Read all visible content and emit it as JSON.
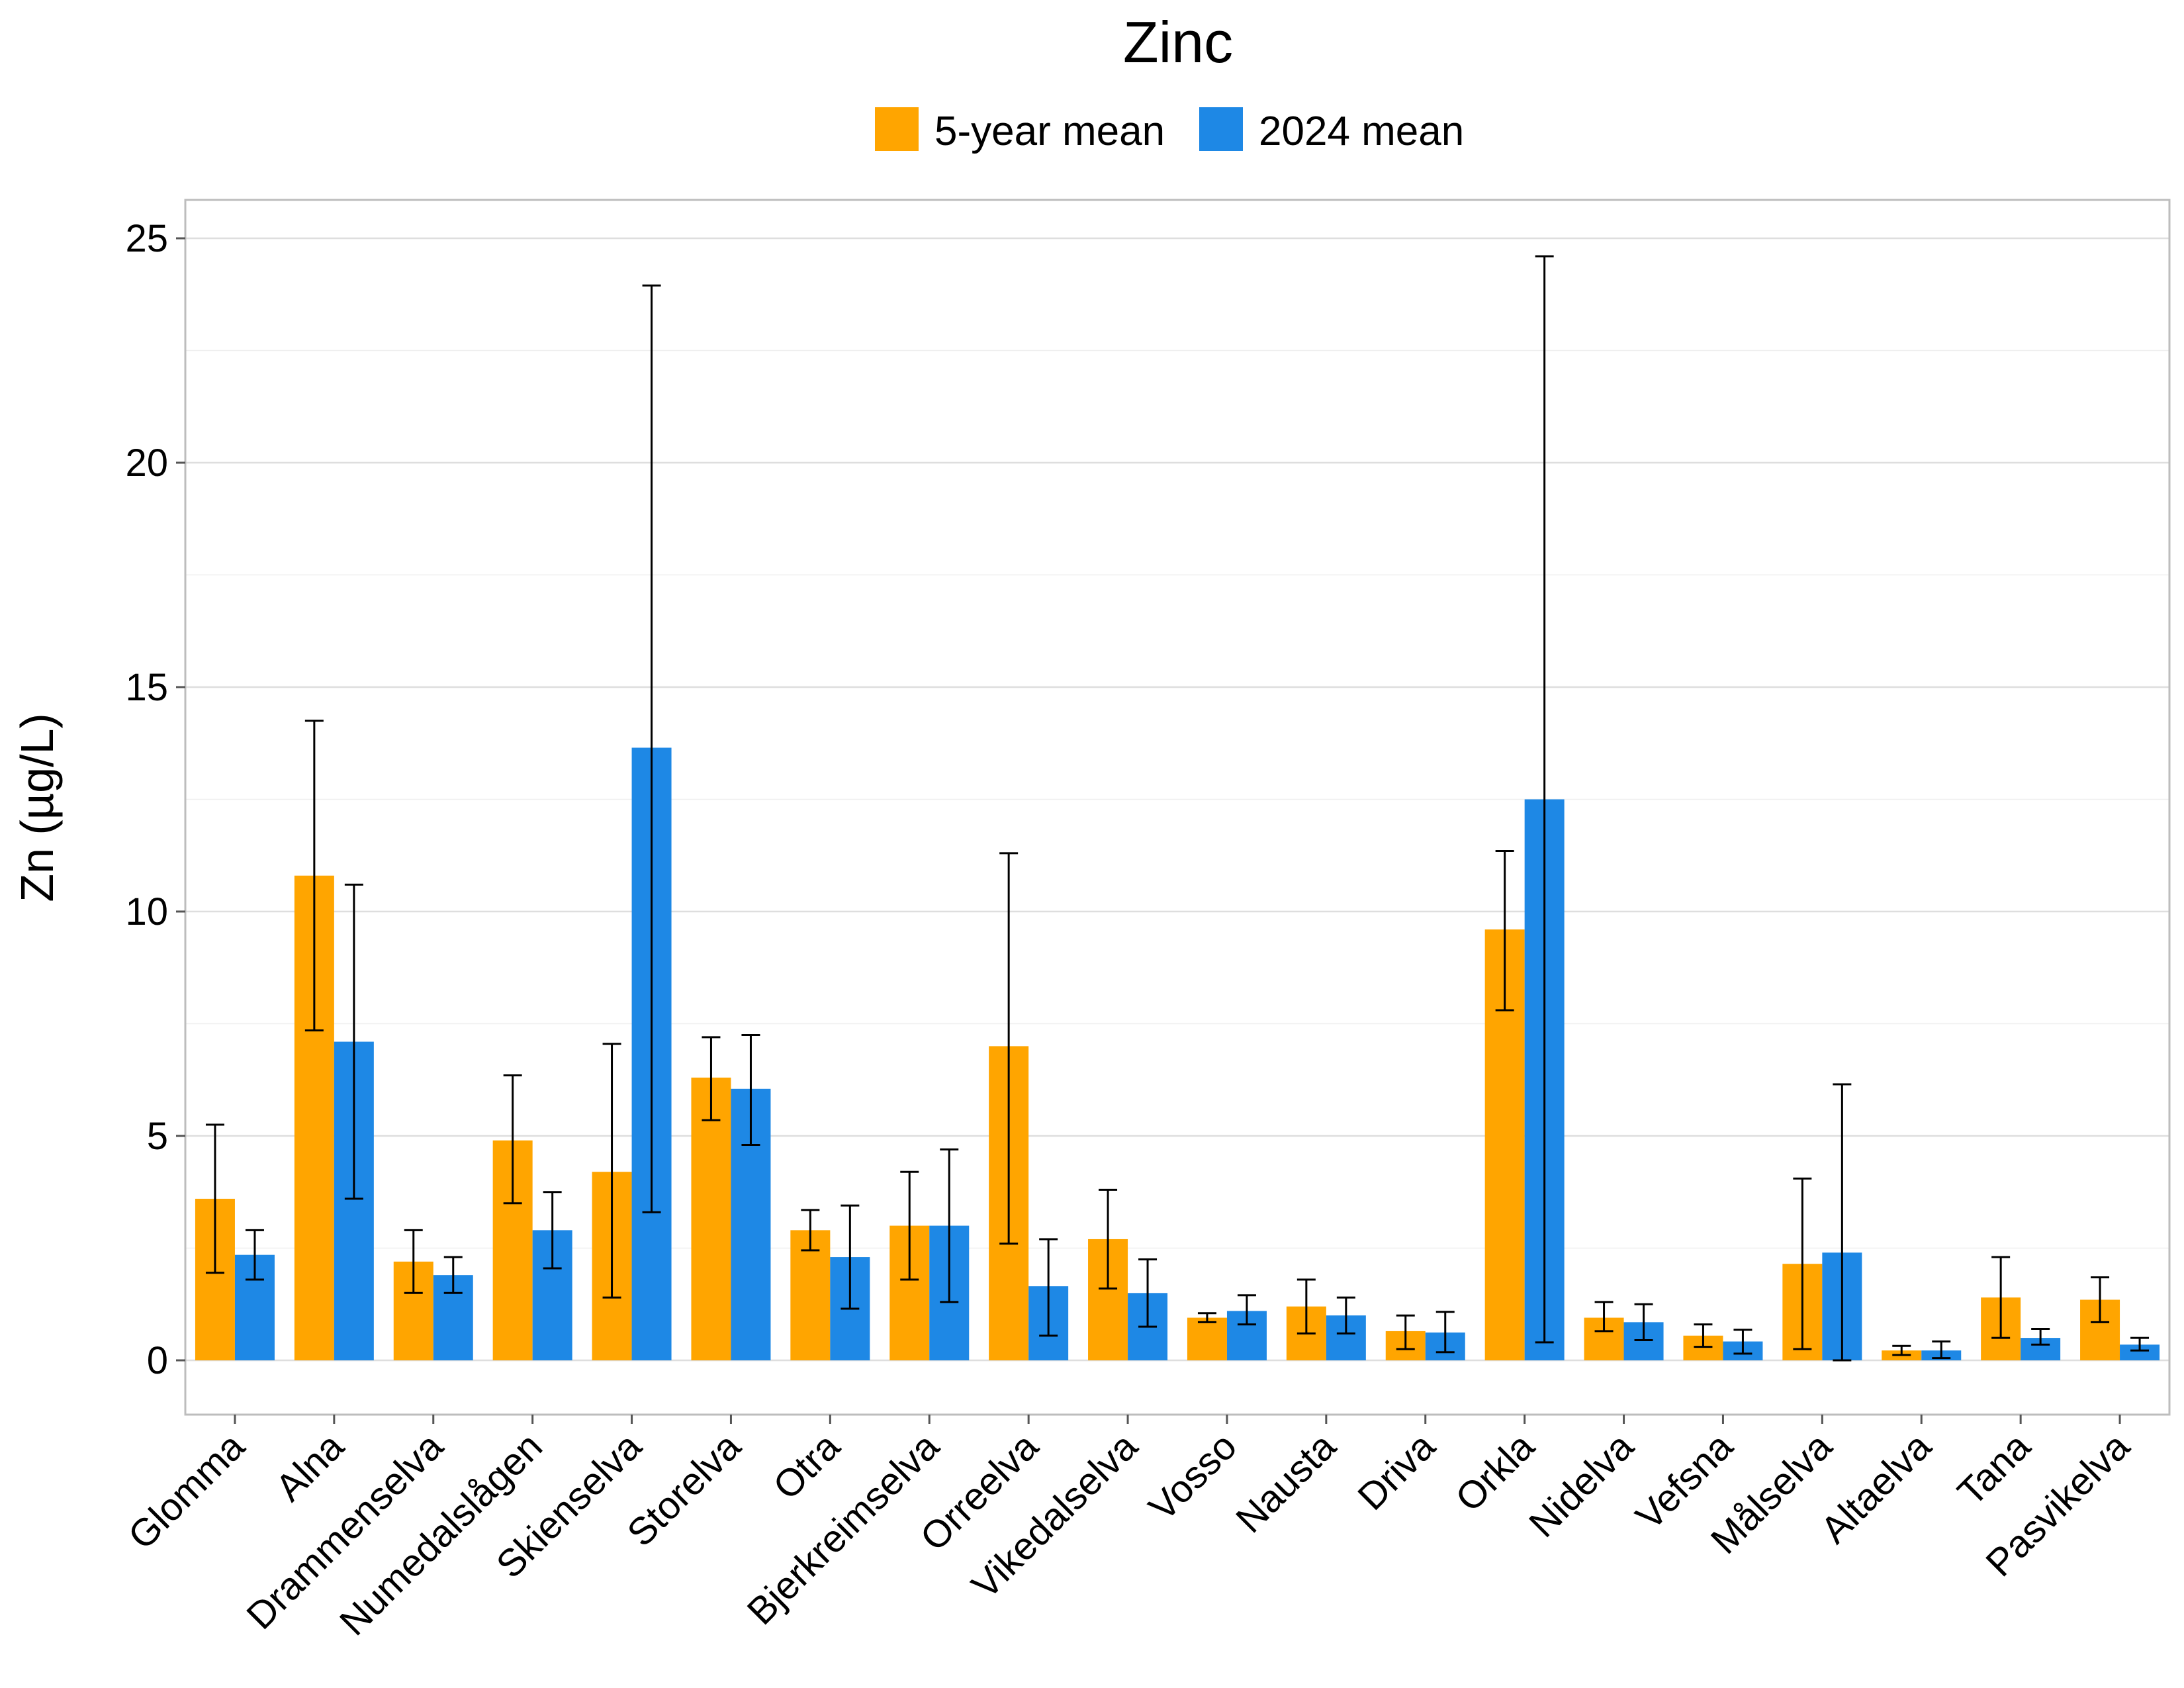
{
  "chart_data": {
    "type": "bar",
    "title": "Zinc",
    "xlabel": "",
    "ylabel": "Zn (µg/L)",
    "ylim": [
      -1.2,
      26
    ],
    "yticks": [
      0,
      5,
      10,
      15,
      20,
      25
    ],
    "legend_position": "top-center",
    "grid": true,
    "categories": [
      "Glomma",
      "Alna",
      "Drammenselva",
      "Numedalslågen",
      "Skienselva",
      "Storelva",
      "Otra",
      "Bjerkreimselva",
      "Orreelva",
      "Vikedalselva",
      "Vosso",
      "Nausta",
      "Driva",
      "Orkla",
      "Nidelva",
      "Vefsna",
      "Målselva",
      "Altaelva",
      "Tana",
      "Pasvikelva"
    ],
    "series": [
      {
        "name": "5-year mean",
        "color": "#FFA500",
        "values": [
          3.6,
          10.8,
          2.2,
          4.9,
          4.2,
          6.3,
          2.9,
          3.0,
          7.0,
          2.7,
          0.95,
          1.2,
          0.65,
          9.6,
          0.95,
          0.55,
          2.15,
          0.22,
          1.4,
          1.35
        ],
        "err_low": [
          1.95,
          7.35,
          1.5,
          3.5,
          1.4,
          5.35,
          2.45,
          1.8,
          2.6,
          1.6,
          0.85,
          0.6,
          0.25,
          7.8,
          0.65,
          0.3,
          0.25,
          0.12,
          0.5,
          0.85
        ],
        "err_high": [
          5.25,
          14.25,
          2.9,
          6.35,
          7.05,
          7.2,
          3.35,
          4.2,
          11.3,
          3.8,
          1.05,
          1.8,
          1.0,
          11.35,
          1.3,
          0.8,
          4.05,
          0.32,
          2.3,
          1.85
        ]
      },
      {
        "name": "2024 mean",
        "color": "#1E88E5",
        "values": [
          2.35,
          7.1,
          1.9,
          2.9,
          13.65,
          6.05,
          2.3,
          3.0,
          1.65,
          1.5,
          1.1,
          1.0,
          0.62,
          12.5,
          0.85,
          0.42,
          2.4,
          0.22,
          0.5,
          0.35
        ],
        "err_low": [
          1.8,
          3.6,
          1.5,
          2.05,
          3.3,
          4.8,
          1.15,
          1.3,
          0.55,
          0.75,
          0.8,
          0.6,
          0.18,
          0.4,
          0.45,
          0.15,
          0.0,
          0.05,
          0.35,
          0.22
        ],
        "err_high": [
          2.9,
          10.6,
          2.3,
          3.75,
          23.95,
          7.25,
          3.45,
          4.7,
          2.7,
          2.25,
          1.45,
          1.4,
          1.08,
          24.6,
          1.25,
          0.68,
          6.15,
          0.42,
          0.7,
          0.5
        ]
      }
    ]
  }
}
